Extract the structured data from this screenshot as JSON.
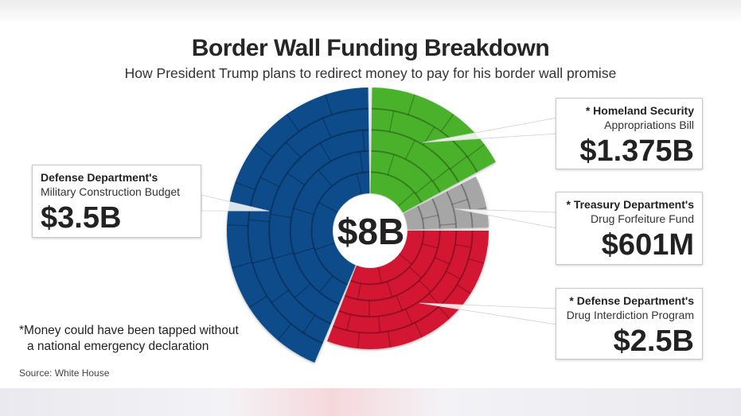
{
  "header": {
    "title_part1": "Border Wall Funding",
    "title_part2": "Breakdown",
    "subtitle": "How President Trump plans to redirect money to pay for his border wall promise"
  },
  "chart_data": {
    "type": "pie",
    "style": "donut",
    "total_label": "$8B",
    "unit": "billion USD",
    "slices": [
      {
        "label": "Homeland Security Appropriations Bill",
        "value": 1.375,
        "display": "$1.375B",
        "color": "#4ab22a",
        "starred": true
      },
      {
        "label": "Treasury Department's Drug Forfeiture Fund",
        "value": 0.601,
        "display": "$601M",
        "color": "#a6a6a6",
        "starred": true
      },
      {
        "label": "Defense Department's Drug Interdiction Program",
        "value": 2.5,
        "display": "$2.5B",
        "color": "#d31833",
        "starred": true
      },
      {
        "label": "Defense Department's Military Construction Budget",
        "value": 3.5,
        "display": "$3.5B",
        "color": "#114c8a",
        "starred": false
      }
    ]
  },
  "callouts": {
    "homeland": {
      "line1": "* Homeland Security",
      "line2": "Appropriations Bill",
      "value": "$1.375B"
    },
    "treasury": {
      "line1": "* Treasury Department's",
      "line2": "Drug Forfeiture Fund",
      "value": "$601M"
    },
    "interdiction": {
      "line1": "* Defense Department's",
      "line2": "Drug Interdiction Program",
      "value": "$2.5B"
    },
    "military": {
      "line1": "Defense Department's",
      "line2": "Military Construction Budget",
      "value": "$3.5B"
    }
  },
  "footnote": {
    "line1": "*Money could have been tapped without",
    "line2": "a national emergency declaration"
  },
  "source": "Source: White House"
}
